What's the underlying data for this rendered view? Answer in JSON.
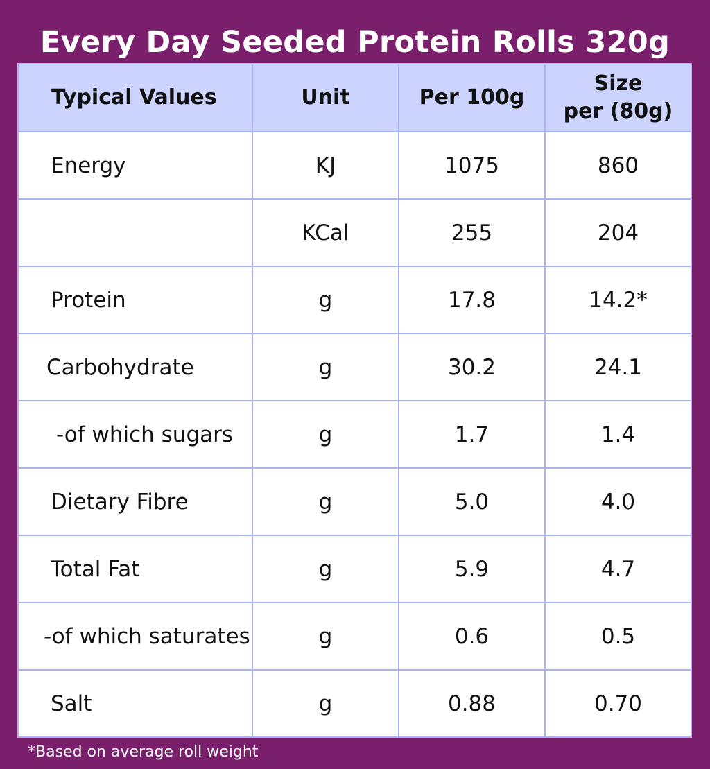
{
  "title": "Every Day Seeded Protein Rolls 320g",
  "colors": {
    "background": "#7a1f6b",
    "header_fill": "#ccd4fd",
    "grid_line": "#a8b4f2"
  },
  "table": {
    "headers": {
      "typical": "Typical Values",
      "unit": "Unit",
      "per100": "Per 100g",
      "size_line1": "Size",
      "size_line2": "per (80g)"
    },
    "rows": [
      {
        "label": "Energy",
        "unit": "KJ",
        "per100": "1075",
        "per80": "860"
      },
      {
        "label": "",
        "unit": "KCal",
        "per100": "255",
        "per80": "204"
      },
      {
        "label": "Protein",
        "unit": "g",
        "per100": "17.8",
        "per80": "14.2*"
      },
      {
        "label": "Carbohydrate",
        "unit": "g",
        "per100": "30.2",
        "per80": "24.1"
      },
      {
        "label": "-of which sugars",
        "unit": "g",
        "per100": "1.7",
        "per80": "1.4"
      },
      {
        "label": "Dietary Fibre",
        "unit": "g",
        "per100": "5.0",
        "per80": "4.0"
      },
      {
        "label": "Total Fat",
        "unit": "g",
        "per100": "5.9",
        "per80": "4.7"
      },
      {
        "label": "-of which saturates",
        "unit": "g",
        "per100": "0.6",
        "per80": "0.5"
      },
      {
        "label": "Salt",
        "unit": "g",
        "per100": "0.88",
        "per80": "0.70"
      }
    ]
  },
  "footnote": "*Based on average roll weight"
}
